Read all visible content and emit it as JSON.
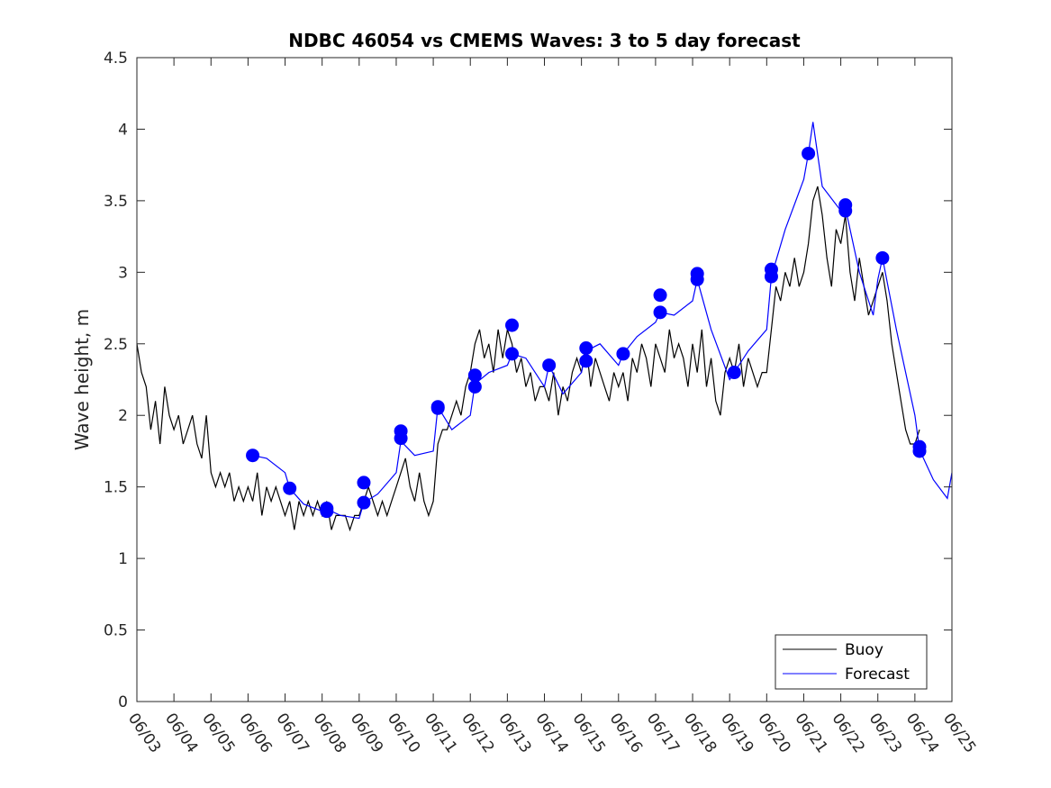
{
  "chart_data": {
    "type": "line",
    "title": "NDBC 46054 vs CMEMS Waves: 3 to 5 day forecast",
    "xlabel": "",
    "ylabel": "Wave height, m",
    "xlim": [
      "06/03",
      "06/25"
    ],
    "ylim": [
      0,
      4.5
    ],
    "x_tick_labels": [
      "06/03",
      "06/04",
      "06/05",
      "06/06",
      "06/07",
      "06/08",
      "06/09",
      "06/10",
      "06/11",
      "06/12",
      "06/13",
      "06/14",
      "06/15",
      "06/16",
      "06/17",
      "06/18",
      "06/19",
      "06/20",
      "06/21",
      "06/22",
      "06/23",
      "06/24",
      "06/25"
    ],
    "y_ticks": [
      0,
      0.5,
      1,
      1.5,
      2,
      2.5,
      3,
      3.5,
      4,
      4.5
    ],
    "y_tick_labels": [
      "0",
      "0.5",
      "1",
      "1.5",
      "2",
      "2.5",
      "3",
      "3.5",
      "4",
      "4.5"
    ],
    "grid": false,
    "legend": {
      "placement": "bottom-right",
      "entries": [
        "Buoy",
        "Forecast"
      ]
    },
    "colors": {
      "buoy": "#000000",
      "forecast": "#0000ff",
      "axis": "#262626"
    },
    "series": [
      {
        "name": "Buoy",
        "color": "#000000",
        "points": [
          [
            "06/03 00:00",
            2.5
          ],
          [
            "06/03 03:00",
            2.3
          ],
          [
            "06/03 06:00",
            2.2
          ],
          [
            "06/03 09:00",
            1.9
          ],
          [
            "06/03 12:00",
            2.1
          ],
          [
            "06/03 15:00",
            1.8
          ],
          [
            "06/03 18:00",
            2.2
          ],
          [
            "06/03 21:00",
            2.0
          ],
          [
            "06/04 00:00",
            1.9
          ],
          [
            "06/04 03:00",
            2.0
          ],
          [
            "06/04 06:00",
            1.8
          ],
          [
            "06/04 09:00",
            1.9
          ],
          [
            "06/04 12:00",
            2.0
          ],
          [
            "06/04 15:00",
            1.8
          ],
          [
            "06/04 18:00",
            1.7
          ],
          [
            "06/04 21:00",
            2.0
          ],
          [
            "06/05 00:00",
            1.6
          ],
          [
            "06/05 03:00",
            1.5
          ],
          [
            "06/05 06:00",
            1.6
          ],
          [
            "06/05 09:00",
            1.5
          ],
          [
            "06/05 12:00",
            1.6
          ],
          [
            "06/05 15:00",
            1.4
          ],
          [
            "06/05 18:00",
            1.5
          ],
          [
            "06/05 21:00",
            1.4
          ],
          [
            "06/06 00:00",
            1.5
          ],
          [
            "06/06 03:00",
            1.4
          ],
          [
            "06/06 06:00",
            1.6
          ],
          [
            "06/06 09:00",
            1.3
          ],
          [
            "06/06 12:00",
            1.5
          ],
          [
            "06/06 15:00",
            1.4
          ],
          [
            "06/06 18:00",
            1.5
          ],
          [
            "06/06 21:00",
            1.4
          ],
          [
            "06/07 00:00",
            1.3
          ],
          [
            "06/07 03:00",
            1.4
          ],
          [
            "06/07 06:00",
            1.2
          ],
          [
            "06/07 09:00",
            1.4
          ],
          [
            "06/07 12:00",
            1.3
          ],
          [
            "06/07 15:00",
            1.4
          ],
          [
            "06/07 18:00",
            1.3
          ],
          [
            "06/07 21:00",
            1.4
          ],
          [
            "06/08 00:00",
            1.3
          ],
          [
            "06/08 03:00",
            1.4
          ],
          [
            "06/08 06:00",
            1.2
          ],
          [
            "06/08 09:00",
            1.3
          ],
          [
            "06/08 12:00",
            1.3
          ],
          [
            "06/08 15:00",
            1.3
          ],
          [
            "06/08 18:00",
            1.2
          ],
          [
            "06/08 21:00",
            1.3
          ],
          [
            "06/09 00:00",
            1.3
          ],
          [
            "06/09 03:00",
            1.4
          ],
          [
            "06/09 06:00",
            1.5
          ],
          [
            "06/09 09:00",
            1.4
          ],
          [
            "06/09 12:00",
            1.3
          ],
          [
            "06/09 15:00",
            1.4
          ],
          [
            "06/09 18:00",
            1.3
          ],
          [
            "06/09 21:00",
            1.4
          ],
          [
            "06/10 00:00",
            1.5
          ],
          [
            "06/10 03:00",
            1.6
          ],
          [
            "06/10 06:00",
            1.7
          ],
          [
            "06/10 09:00",
            1.5
          ],
          [
            "06/10 12:00",
            1.4
          ],
          [
            "06/10 15:00",
            1.6
          ],
          [
            "06/10 18:00",
            1.4
          ],
          [
            "06/10 21:00",
            1.3
          ],
          [
            "06/11 00:00",
            1.4
          ],
          [
            "06/11 03:00",
            1.8
          ],
          [
            "06/11 06:00",
            1.9
          ],
          [
            "06/11 09:00",
            1.9
          ],
          [
            "06/11 12:00",
            2.0
          ],
          [
            "06/11 15:00",
            2.1
          ],
          [
            "06/11 18:00",
            2.0
          ],
          [
            "06/11 21:00",
            2.2
          ],
          [
            "06/12 00:00",
            2.3
          ],
          [
            "06/12 03:00",
            2.5
          ],
          [
            "06/12 06:00",
            2.6
          ],
          [
            "06/12 09:00",
            2.4
          ],
          [
            "06/12 12:00",
            2.5
          ],
          [
            "06/12 15:00",
            2.3
          ],
          [
            "06/12 18:00",
            2.6
          ],
          [
            "06/12 21:00",
            2.4
          ],
          [
            "06/13 00:00",
            2.6
          ],
          [
            "06/13 03:00",
            2.5
          ],
          [
            "06/13 06:00",
            2.3
          ],
          [
            "06/13 09:00",
            2.4
          ],
          [
            "06/13 12:00",
            2.2
          ],
          [
            "06/13 15:00",
            2.3
          ],
          [
            "06/13 18:00",
            2.1
          ],
          [
            "06/13 21:00",
            2.2
          ],
          [
            "06/14 00:00",
            2.2
          ],
          [
            "06/14 03:00",
            2.1
          ],
          [
            "06/14 06:00",
            2.3
          ],
          [
            "06/14 09:00",
            2.0
          ],
          [
            "06/14 12:00",
            2.2
          ],
          [
            "06/14 15:00",
            2.1
          ],
          [
            "06/14 18:00",
            2.3
          ],
          [
            "06/14 21:00",
            2.4
          ],
          [
            "06/15 00:00",
            2.3
          ],
          [
            "06/15 03:00",
            2.5
          ],
          [
            "06/15 06:00",
            2.2
          ],
          [
            "06/15 09:00",
            2.4
          ],
          [
            "06/15 12:00",
            2.3
          ],
          [
            "06/15 15:00",
            2.2
          ],
          [
            "06/15 18:00",
            2.1
          ],
          [
            "06/15 21:00",
            2.3
          ],
          [
            "06/16 00:00",
            2.2
          ],
          [
            "06/16 03:00",
            2.3
          ],
          [
            "06/16 06:00",
            2.1
          ],
          [
            "06/16 09:00",
            2.4
          ],
          [
            "06/16 12:00",
            2.3
          ],
          [
            "06/16 15:00",
            2.5
          ],
          [
            "06/16 18:00",
            2.4
          ],
          [
            "06/16 21:00",
            2.2
          ],
          [
            "06/17 00:00",
            2.5
          ],
          [
            "06/17 03:00",
            2.4
          ],
          [
            "06/17 06:00",
            2.3
          ],
          [
            "06/17 09:00",
            2.6
          ],
          [
            "06/17 12:00",
            2.4
          ],
          [
            "06/17 15:00",
            2.5
          ],
          [
            "06/17 18:00",
            2.4
          ],
          [
            "06/17 21:00",
            2.2
          ],
          [
            "06/18 00:00",
            2.5
          ],
          [
            "06/18 03:00",
            2.3
          ],
          [
            "06/18 06:00",
            2.6
          ],
          [
            "06/18 09:00",
            2.2
          ],
          [
            "06/18 12:00",
            2.4
          ],
          [
            "06/18 15:00",
            2.1
          ],
          [
            "06/18 18:00",
            2.0
          ],
          [
            "06/18 21:00",
            2.3
          ],
          [
            "06/19 00:00",
            2.4
          ],
          [
            "06/19 03:00",
            2.3
          ],
          [
            "06/19 06:00",
            2.5
          ],
          [
            "06/19 09:00",
            2.2
          ],
          [
            "06/19 12:00",
            2.4
          ],
          [
            "06/19 15:00",
            2.3
          ],
          [
            "06/19 18:00",
            2.2
          ],
          [
            "06/19 21:00",
            2.3
          ],
          [
            "06/20 00:00",
            2.3
          ],
          [
            "06/20 03:00",
            2.6
          ],
          [
            "06/20 06:00",
            2.9
          ],
          [
            "06/20 09:00",
            2.8
          ],
          [
            "06/20 12:00",
            3.0
          ],
          [
            "06/20 15:00",
            2.9
          ],
          [
            "06/20 18:00",
            3.1
          ],
          [
            "06/20 21:00",
            2.9
          ],
          [
            "06/21 00:00",
            3.0
          ],
          [
            "06/21 03:00",
            3.2
          ],
          [
            "06/21 06:00",
            3.5
          ],
          [
            "06/21 09:00",
            3.6
          ],
          [
            "06/21 12:00",
            3.4
          ],
          [
            "06/21 15:00",
            3.1
          ],
          [
            "06/21 18:00",
            2.9
          ],
          [
            "06/21 21:00",
            3.3
          ],
          [
            "06/22 00:00",
            3.2
          ],
          [
            "06/22 03:00",
            3.4
          ],
          [
            "06/22 06:00",
            3.0
          ],
          [
            "06/22 09:00",
            2.8
          ],
          [
            "06/22 12:00",
            3.1
          ],
          [
            "06/22 15:00",
            2.9
          ],
          [
            "06/22 18:00",
            2.7
          ],
          [
            "06/22 21:00",
            2.8
          ],
          [
            "06/23 00:00",
            2.9
          ],
          [
            "06/23 03:00",
            3.0
          ],
          [
            "06/23 06:00",
            2.8
          ],
          [
            "06/23 09:00",
            2.5
          ],
          [
            "06/23 12:00",
            2.3
          ],
          [
            "06/23 15:00",
            2.1
          ],
          [
            "06/23 18:00",
            1.9
          ],
          [
            "06/23 21:00",
            1.8
          ],
          [
            "06/24 00:00",
            1.8
          ],
          [
            "06/24 03:00",
            1.9
          ]
        ]
      },
      {
        "name": "Forecast",
        "color": "#0000ff",
        "points": [
          [
            "06/06 03:00",
            1.72
          ],
          [
            "06/06 12:00",
            1.7
          ],
          [
            "06/07 00:00",
            1.6
          ],
          [
            "06/07 03:00",
            1.49
          ],
          [
            "06/07 12:00",
            1.38
          ],
          [
            "06/08 00:00",
            1.33
          ],
          [
            "06/08 06:00",
            1.33
          ],
          [
            "06/08 12:00",
            1.3
          ],
          [
            "06/09 00:00",
            1.28
          ],
          [
            "06/09 03:00",
            1.39
          ],
          [
            "06/09 12:00",
            1.45
          ],
          [
            "06/10 00:00",
            1.6
          ],
          [
            "06/10 03:00",
            1.82
          ],
          [
            "06/10 12:00",
            1.72
          ],
          [
            "06/11 00:00",
            1.75
          ],
          [
            "06/11 03:00",
            2.06
          ],
          [
            "06/11 12:00",
            1.9
          ],
          [
            "06/12 00:00",
            2.0
          ],
          [
            "06/12 03:00",
            2.22
          ],
          [
            "06/12 12:00",
            2.3
          ],
          [
            "06/13 00:00",
            2.35
          ],
          [
            "06/13 03:00",
            2.43
          ],
          [
            "06/13 12:00",
            2.4
          ],
          [
            "06/14 00:00",
            2.2
          ],
          [
            "06/14 03:00",
            2.35
          ],
          [
            "06/14 12:00",
            2.15
          ],
          [
            "06/15 00:00",
            2.3
          ],
          [
            "06/15 03:00",
            2.45
          ],
          [
            "06/15 12:00",
            2.5
          ],
          [
            "06/16 00:00",
            2.35
          ],
          [
            "06/16 03:00",
            2.43
          ],
          [
            "06/16 12:00",
            2.55
          ],
          [
            "06/17 00:00",
            2.65
          ],
          [
            "06/17 03:00",
            2.72
          ],
          [
            "06/17 12:00",
            2.7
          ],
          [
            "06/18 00:00",
            2.8
          ],
          [
            "06/18 03:00",
            2.95
          ],
          [
            "06/18 12:00",
            2.6
          ],
          [
            "06/19 00:00",
            2.25
          ],
          [
            "06/19 03:00",
            2.3
          ],
          [
            "06/19 12:00",
            2.45
          ],
          [
            "06/20 00:00",
            2.6
          ],
          [
            "06/20 03:00",
            2.97
          ],
          [
            "06/20 12:00",
            3.3
          ],
          [
            "06/21 00:00",
            3.65
          ],
          [
            "06/21 03:00",
            3.83
          ],
          [
            "06/21 06:00",
            4.05
          ],
          [
            "06/21 12:00",
            3.6
          ],
          [
            "06/22 00:00",
            3.43
          ],
          [
            "06/22 03:00",
            3.45
          ],
          [
            "06/22 12:00",
            3.0
          ],
          [
            "06/22 21:00",
            2.7
          ],
          [
            "06/23 00:00",
            2.95
          ],
          [
            "06/23 03:00",
            3.1
          ],
          [
            "06/23 12:00",
            2.6
          ],
          [
            "06/24 00:00",
            2.0
          ],
          [
            "06/24 03:00",
            1.76
          ],
          [
            "06/24 12:00",
            1.55
          ],
          [
            "06/24 21:00",
            1.42
          ],
          [
            "06/25 00:00",
            1.6
          ]
        ]
      }
    ],
    "forecast_markers": [
      [
        "06/06 03:00",
        1.72
      ],
      [
        "06/07 03:00",
        1.49
      ],
      [
        "06/08 03:00",
        1.33
      ],
      [
        "06/08 03:00",
        1.35
      ],
      [
        "06/09 03:00",
        1.53
      ],
      [
        "06/09 03:00",
        1.39
      ],
      [
        "06/10 03:00",
        1.89
      ],
      [
        "06/10 03:00",
        1.84
      ],
      [
        "06/11 03:00",
        2.06
      ],
      [
        "06/11 03:00",
        2.05
      ],
      [
        "06/12 03:00",
        2.28
      ],
      [
        "06/12 03:00",
        2.2
      ],
      [
        "06/13 03:00",
        2.63
      ],
      [
        "06/13 03:00",
        2.43
      ],
      [
        "06/14 03:00",
        2.35
      ],
      [
        "06/15 03:00",
        2.47
      ],
      [
        "06/15 03:00",
        2.38
      ],
      [
        "06/16 03:00",
        2.43
      ],
      [
        "06/17 03:00",
        2.84
      ],
      [
        "06/17 03:00",
        2.72
      ],
      [
        "06/18 03:00",
        2.99
      ],
      [
        "06/18 03:00",
        2.95
      ],
      [
        "06/19 03:00",
        2.3
      ],
      [
        "06/20 03:00",
        3.02
      ],
      [
        "06/20 03:00",
        2.97
      ],
      [
        "06/21 03:00",
        3.83
      ],
      [
        "06/22 03:00",
        3.47
      ],
      [
        "06/22 03:00",
        3.43
      ],
      [
        "06/23 03:00",
        3.1
      ],
      [
        "06/24 03:00",
        1.78
      ],
      [
        "06/24 03:00",
        1.75
      ]
    ]
  }
}
